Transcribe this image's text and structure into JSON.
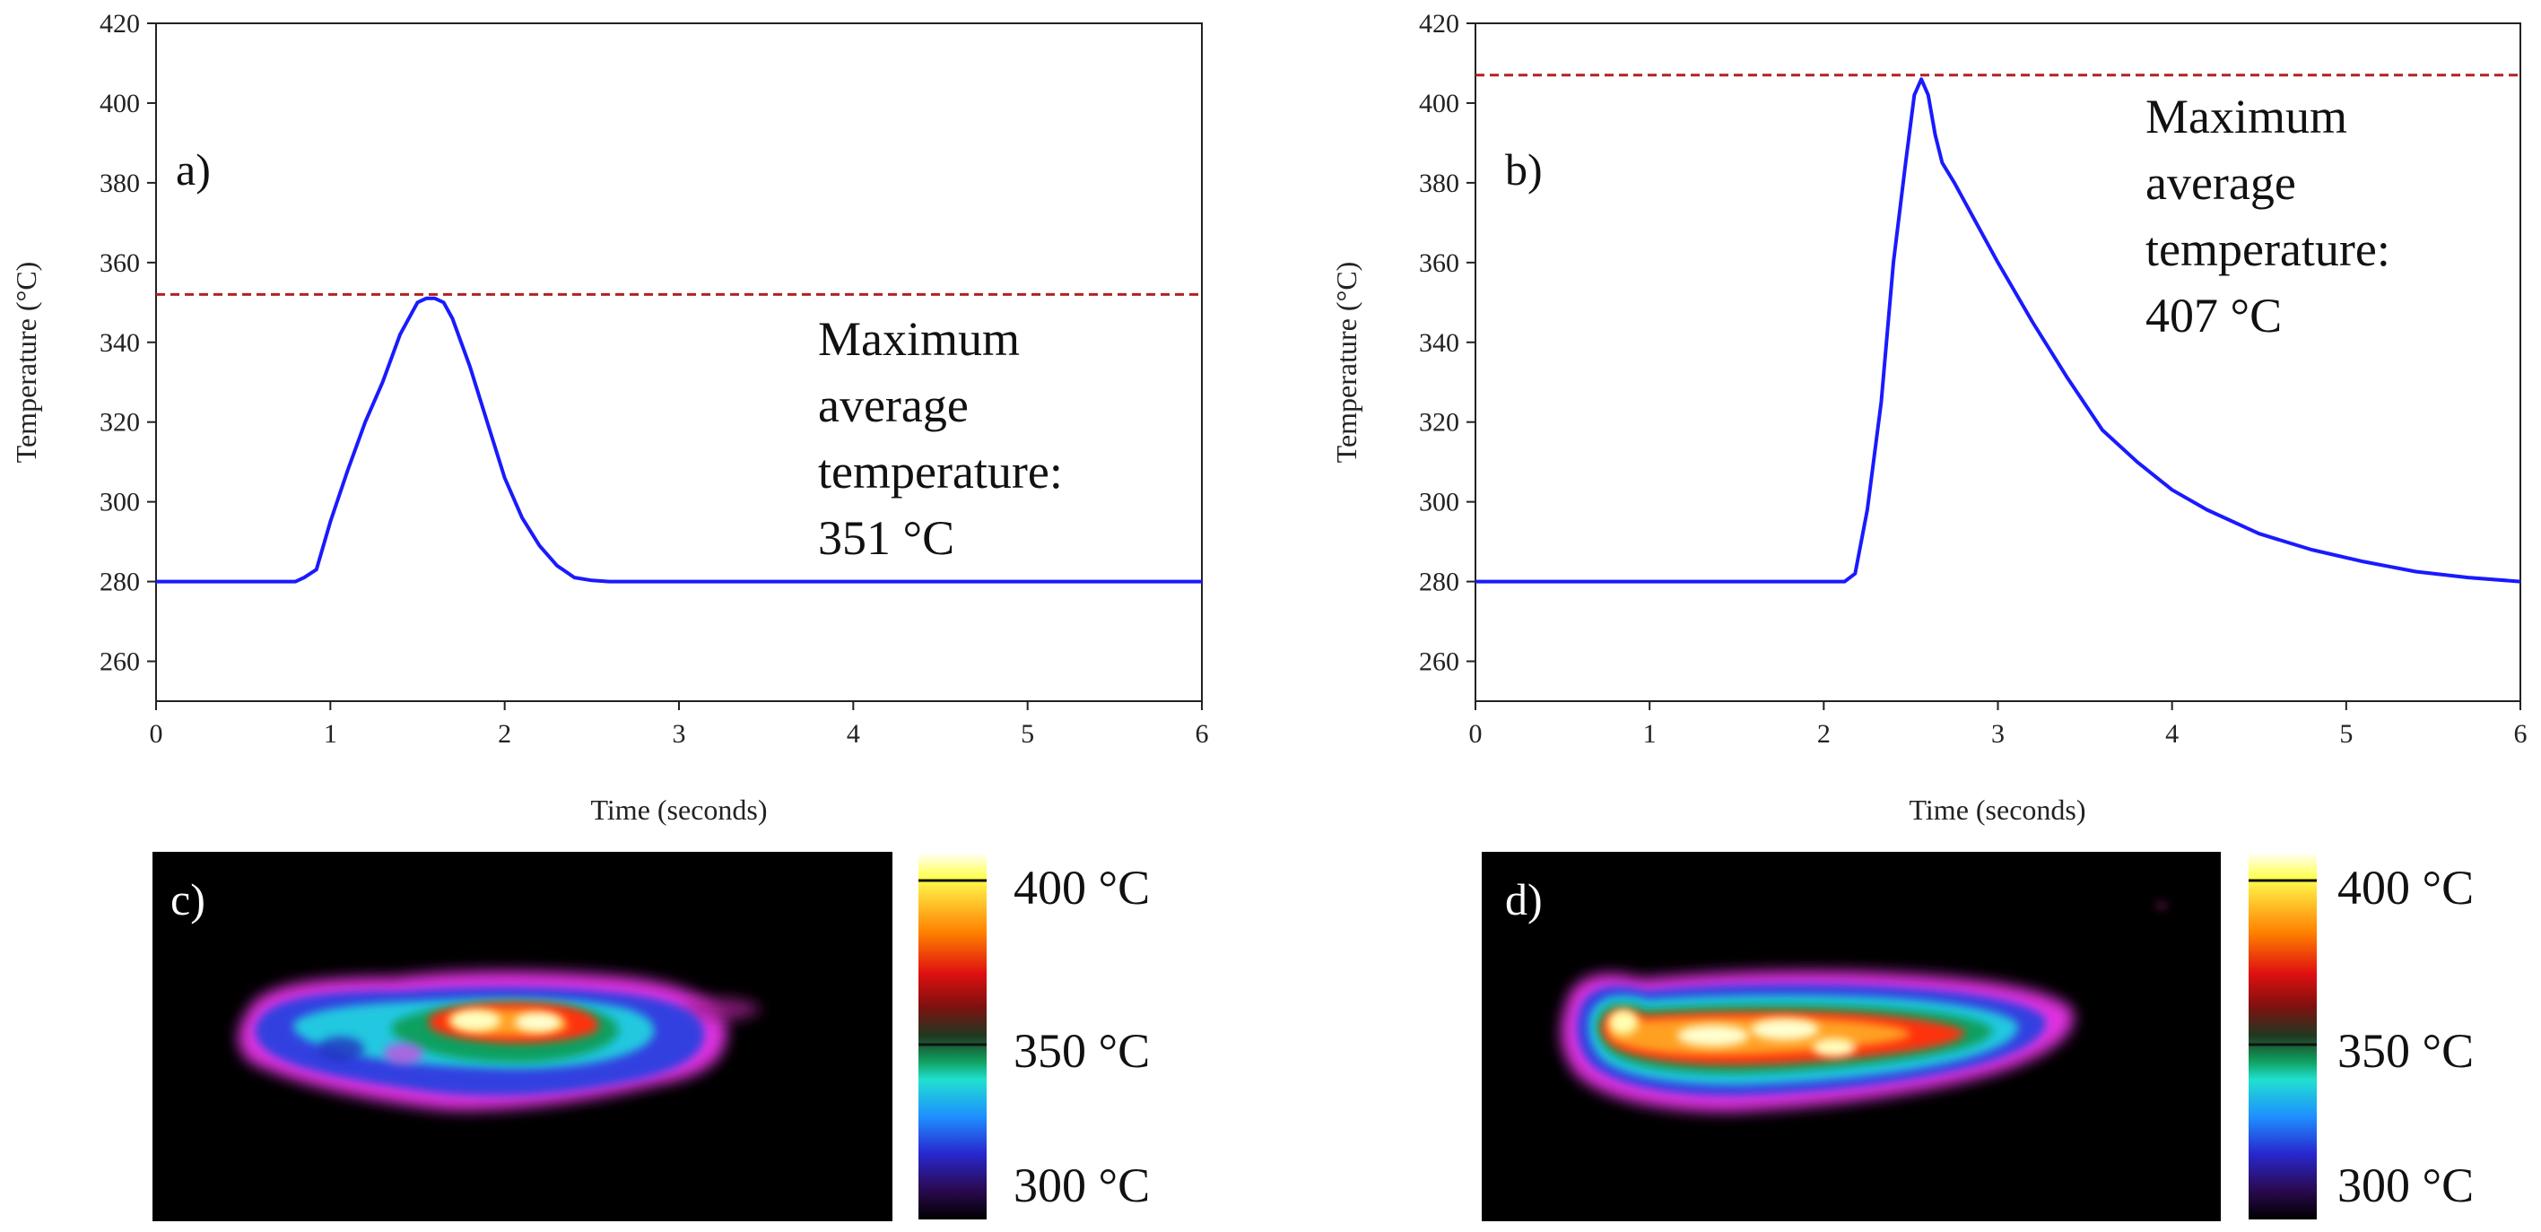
{
  "chart_data": [
    {
      "type": "line",
      "panel_label": "a)",
      "xlabel": "Time (seconds)",
      "ylabel": "Temperature (°C)",
      "xlim": [
        0,
        6
      ],
      "ylim": [
        250,
        420
      ],
      "xticks": [
        "0",
        "1",
        "2",
        "3",
        "4",
        "5",
        "6"
      ],
      "yticks": [
        "260",
        "280",
        "300",
        "320",
        "340",
        "360",
        "380",
        "400",
        "420"
      ],
      "grid": false,
      "series": [
        {
          "color": "#1a1aff",
          "x": [
            0,
            0.8,
            0.85,
            0.92,
            1.0,
            1.1,
            1.2,
            1.3,
            1.4,
            1.5,
            1.55,
            1.6,
            1.65,
            1.7,
            1.8,
            1.9,
            2.0,
            2.1,
            2.2,
            2.3,
            2.4,
            2.5,
            2.6,
            2.8,
            6.0
          ],
          "y": [
            280,
            280,
            281,
            283,
            295,
            308,
            320,
            330,
            342,
            350,
            351,
            351,
            350,
            346,
            334,
            320,
            306,
            296,
            289,
            284,
            281,
            280.3,
            280,
            280,
            280
          ]
        }
      ],
      "reference_line": {
        "y": 352,
        "color": "#b22222",
        "style": "dashed"
      },
      "annotation": [
        "Maximum",
        "average",
        "temperature:",
        "351 °C"
      ]
    },
    {
      "type": "line",
      "panel_label": "b)",
      "xlabel": "Time (seconds)",
      "ylabel": "Temperature (°C)",
      "xlim": [
        0,
        6
      ],
      "ylim": [
        250,
        420
      ],
      "xticks": [
        "0",
        "1",
        "2",
        "3",
        "4",
        "5",
        "6"
      ],
      "yticks": [
        "260",
        "280",
        "300",
        "320",
        "340",
        "360",
        "380",
        "400",
        "420"
      ],
      "grid": false,
      "series": [
        {
          "color": "#1a1aff",
          "x": [
            0,
            2.12,
            2.18,
            2.25,
            2.33,
            2.4,
            2.47,
            2.52,
            2.56,
            2.6,
            2.64,
            2.68,
            2.75,
            2.85,
            3.0,
            3.2,
            3.4,
            3.6,
            3.8,
            4.0,
            4.2,
            4.5,
            4.8,
            5.1,
            5.4,
            5.7,
            6.0
          ],
          "y": [
            280,
            280,
            282,
            298,
            325,
            360,
            385,
            402,
            406,
            402,
            392,
            385,
            380,
            372,
            360,
            345,
            331,
            318,
            310,
            303,
            298,
            292,
            288,
            285,
            282.5,
            281,
            280
          ]
        }
      ],
      "reference_line": {
        "y": 407,
        "color": "#b22222",
        "style": "dashed"
      },
      "annotation": [
        "Maximum",
        "average",
        "temperature:",
        "407 °C"
      ]
    }
  ],
  "thermal_images": [
    {
      "panel_label": "c)",
      "colorbar_ticks": [
        "400 °C",
        "350 °C",
        "300 °C"
      ],
      "colormap": [
        "#ffffff",
        "#ffff40",
        "#ff8000",
        "#ff2000",
        "#b01010",
        "#203020",
        "#10b060",
        "#20e0d0",
        "#2090ff",
        "#3030d0",
        "#301060",
        "#000000"
      ]
    },
    {
      "panel_label": "d)",
      "colorbar_ticks": [
        "400 °C",
        "350 °C",
        "300 °C"
      ],
      "colormap": [
        "#ffffff",
        "#ffff40",
        "#ff8000",
        "#ff2000",
        "#b01010",
        "#203020",
        "#10b060",
        "#20e0d0",
        "#2090ff",
        "#3030d0",
        "#301060",
        "#000000"
      ]
    }
  ]
}
